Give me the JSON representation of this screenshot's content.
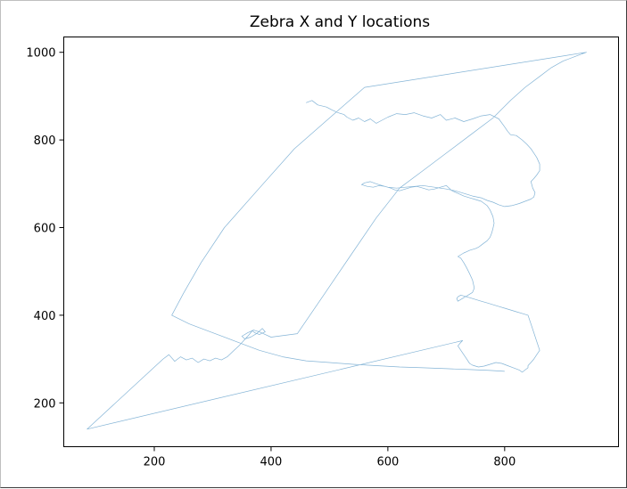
{
  "chart_data": {
    "type": "line",
    "title": "Zebra X and Y locations",
    "xlabel": "",
    "ylabel": "",
    "xlim": [
      45,
      995
    ],
    "ylim": [
      100,
      1035
    ],
    "xticks": [
      200,
      400,
      600,
      800
    ],
    "yticks": [
      200,
      400,
      600,
      800,
      1000
    ],
    "grid": false,
    "legend": "none",
    "series": [
      {
        "color": "#1f77b4",
        "x": [
          460,
          470,
          480,
          495,
          505,
          515,
          525,
          530,
          540,
          550,
          560,
          570,
          580,
          590,
          600,
          615,
          630,
          645,
          660,
          675,
          690,
          700,
          715,
          730,
          745,
          760,
          775,
          790,
          800,
          805,
          810,
          820,
          830,
          838,
          845,
          850,
          855,
          860,
          860,
          855,
          850,
          845,
          848,
          852,
          850,
          845,
          835,
          825,
          812,
          800,
          790,
          780,
          770,
          760,
          745,
          730,
          715,
          700,
          690,
          680,
          670,
          660,
          645,
          630,
          615,
          600,
          590,
          580,
          570,
          560,
          555,
          565,
          575,
          585,
          595,
          605,
          612,
          620,
          630,
          640,
          650,
          660,
          670,
          680,
          690,
          700,
          705,
          710,
          720,
          730,
          740,
          750,
          760,
          770,
          775,
          780,
          782,
          780,
          778,
          775,
          770,
          765,
          760,
          755,
          750,
          745,
          740,
          735,
          730,
          725,
          720,
          725,
          730,
          735,
          740,
          745,
          748,
          745,
          740,
          735,
          730,
          725,
          720,
          718,
          720,
          725,
          730,
          740,
          750,
          760,
          770,
          780,
          790,
          800,
          810,
          820,
          830,
          840,
          845,
          850,
          855,
          860,
          855,
          850,
          845,
          840,
          840,
          835,
          830,
          825,
          815,
          805,
          795,
          785,
          775,
          765,
          755,
          745,
          740,
          735,
          730,
          725,
          720,
          725,
          728,
          85,
          215,
          225,
          235,
          245,
          255,
          265,
          275,
          285,
          295,
          305,
          315,
          325,
          335,
          345,
          355,
          362,
          368,
          372,
          380,
          390,
          385,
          375,
          365,
          355,
          350,
          360,
          370,
          380,
          390,
          400,
          445,
          490,
          535,
          580,
          620,
          660,
          700,
          740,
          780,
          810,
          835,
          860,
          880,
          900,
          920,
          940,
          560,
          500,
          440,
          380,
          320,
          280,
          250,
          230,
          260,
          300,
          340,
          380,
          420,
          460,
          500,
          540,
          580,
          620,
          660,
          700,
          740,
          775,
          800
        ],
        "y": [
          885,
          890,
          880,
          875,
          868,
          862,
          858,
          852,
          845,
          850,
          842,
          848,
          838,
          845,
          852,
          860,
          858,
          862,
          855,
          850,
          858,
          845,
          850,
          842,
          848,
          855,
          858,
          848,
          830,
          820,
          812,
          810,
          800,
          790,
          780,
          770,
          760,
          745,
          730,
          720,
          712,
          705,
          690,
          680,
          670,
          665,
          660,
          655,
          650,
          648,
          652,
          658,
          662,
          668,
          672,
          678,
          684,
          688,
          690,
          692,
          694,
          696,
          694,
          692,
          690,
          692,
          696,
          700,
          705,
          702,
          698,
          694,
          692,
          696,
          694,
          690,
          686,
          684,
          688,
          692,
          694,
          690,
          686,
          688,
          692,
          696,
          690,
          684,
          678,
          672,
          668,
          664,
          660,
          650,
          640,
          625,
          610,
          598,
          588,
          578,
          570,
          565,
          560,
          555,
          552,
          550,
          548,
          545,
          542,
          538,
          534,
          530,
          520,
          508,
          495,
          480,
          462,
          452,
          448,
          444,
          440,
          436,
          432,
          438,
          442,
          446,
          444,
          440,
          436,
          432,
          428,
          424,
          420,
          416,
          412,
          408,
          404,
          400,
          380,
          360,
          340,
          320,
          310,
          300,
          292,
          285,
          280,
          275,
          270,
          275,
          280,
          285,
          290,
          292,
          288,
          284,
          282,
          286,
          290,
          300,
          310,
          320,
          330,
          338,
          342,
          140,
          300,
          310,
          295,
          305,
          298,
          302,
          292,
          300,
          296,
          302,
          298,
          305,
          318,
          330,
          345,
          355,
          365,
          360,
          356,
          362,
          370,
          358,
          350,
          346,
          352,
          360,
          366,
          362,
          356,
          350,
          358,
          446,
          534,
          622,
          690,
          730,
          770,
          810,
          850,
          890,
          920,
          945,
          965,
          980,
          990,
          1000,
          920,
          850,
          780,
          690,
          600,
          520,
          450,
          400,
          380,
          360,
          340,
          320,
          305,
          296,
          292,
          288,
          285,
          282,
          280,
          278,
          276,
          274,
          272
        ]
      }
    ]
  }
}
